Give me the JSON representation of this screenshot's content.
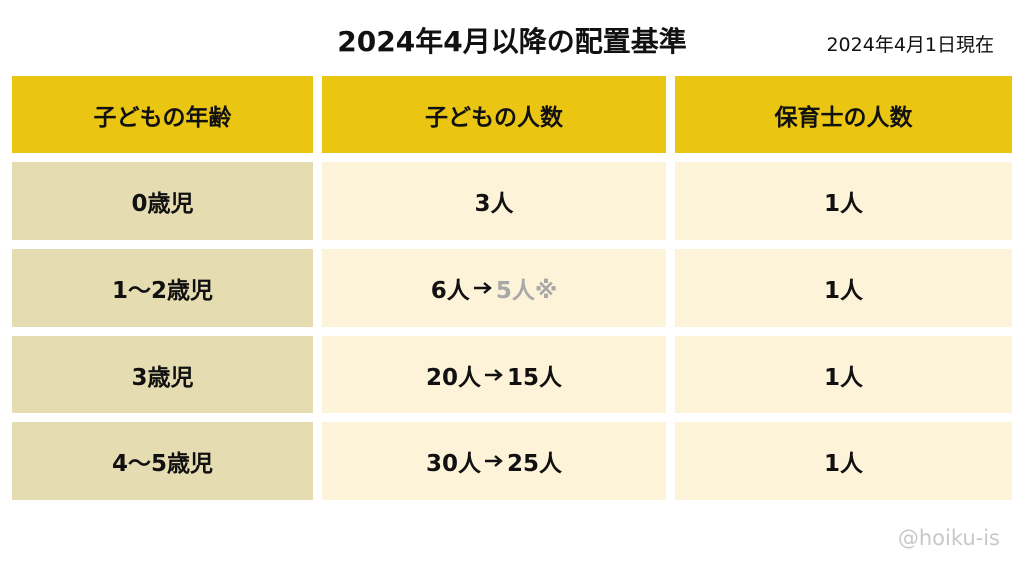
{
  "header": {
    "title": "2024年4月以降の配置基準",
    "date": "2024年4月1日現在"
  },
  "table": {
    "columns": [
      "子どもの年齢",
      "子どもの人数",
      "保育士の人数"
    ],
    "rows": [
      {
        "age": "0歳児",
        "children": "3人",
        "staff": "1人"
      },
      {
        "age": "1〜2歳児",
        "children": {
          "before": "6人",
          "after": "5人※",
          "after_color": "#a8a8a8"
        },
        "staff": "1人"
      },
      {
        "age": "3歳児",
        "children": {
          "before": "20人",
          "after": "15人",
          "after_color": "#111111"
        },
        "staff": "1人"
      },
      {
        "age": "4〜5歳児",
        "children": {
          "before": "30人",
          "after": "25人",
          "after_color": "#111111"
        },
        "staff": "1人"
      }
    ]
  },
  "footer": {
    "credit": "@hoiku-is"
  }
}
